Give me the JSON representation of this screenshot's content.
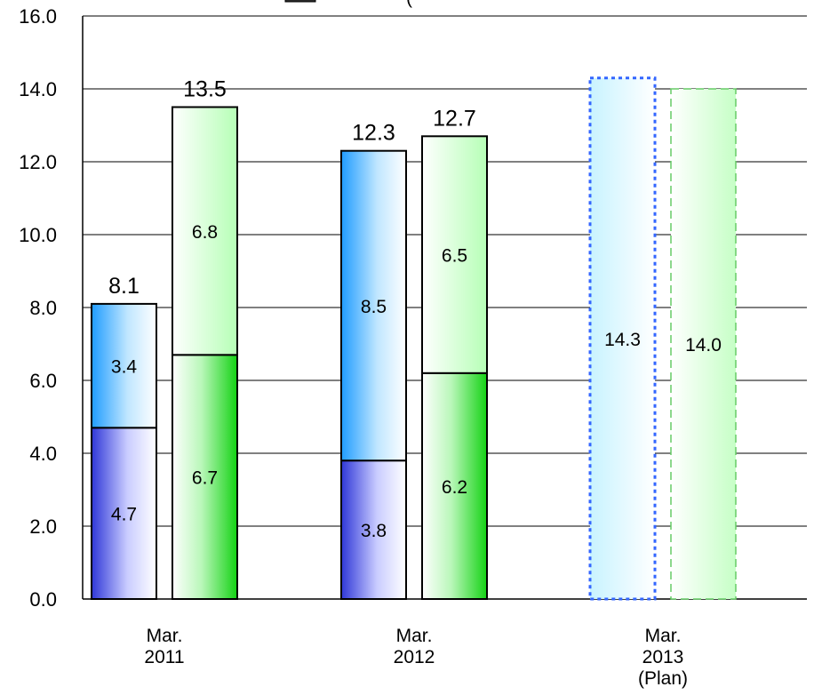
{
  "chart_data": {
    "type": "bar",
    "stacked": true,
    "categories": [
      "Mar.\n2011",
      "Mar.\n2012",
      "Mar.\n2013\n(Plan)"
    ],
    "ylim": [
      0,
      16
    ],
    "yticks": [
      "0.0",
      "2.0",
      "4.0",
      "6.0",
      "8.0",
      "10.0",
      "12.0",
      "14.0",
      "16.0"
    ],
    "grid": true,
    "legend_position": "top",
    "legend_text": "(",
    "groups": [
      {
        "category": "Mar.\n2011",
        "bars": [
          {
            "series": "blue",
            "segments": [
              4.7,
              3.4
            ],
            "total": 8.1,
            "labels": [
              "4.7",
              "3.4"
            ],
            "total_label": "8.1"
          },
          {
            "series": "green",
            "segments": [
              6.7,
              6.8
            ],
            "total": 13.5,
            "labels": [
              "6.7",
              "6.8"
            ],
            "total_label": "13.5"
          }
        ]
      },
      {
        "category": "Mar.\n2012",
        "bars": [
          {
            "series": "blue",
            "segments": [
              3.8,
              8.5
            ],
            "total": 12.3,
            "labels": [
              "3.8",
              "8.5"
            ],
            "total_label": "12.3"
          },
          {
            "series": "green",
            "segments": [
              6.2,
              6.5
            ],
            "total": 12.7,
            "labels": [
              "6.2",
              "6.5"
            ],
            "total_label": "12.7"
          }
        ]
      },
      {
        "category": "Mar.\n2013\n(Plan)",
        "bars": [
          {
            "series": "blue",
            "segments": [
              14.3
            ],
            "total": 14.3,
            "labels": [
              "14.3"
            ],
            "total_label": "",
            "plan": true
          },
          {
            "series": "green",
            "segments": [
              14.0
            ],
            "total": 14.0,
            "labels": [
              "14.0"
            ],
            "total_label": "",
            "plan": true
          }
        ]
      }
    ],
    "colors": {
      "dark_blue": "#3d45e0",
      "light_blue": "#33aaff",
      "dark_green": "#22dd22",
      "light_green": "#bfffbf",
      "plan_blue_border": "#3366ff",
      "plan_green_border": "#66cc66"
    }
  }
}
